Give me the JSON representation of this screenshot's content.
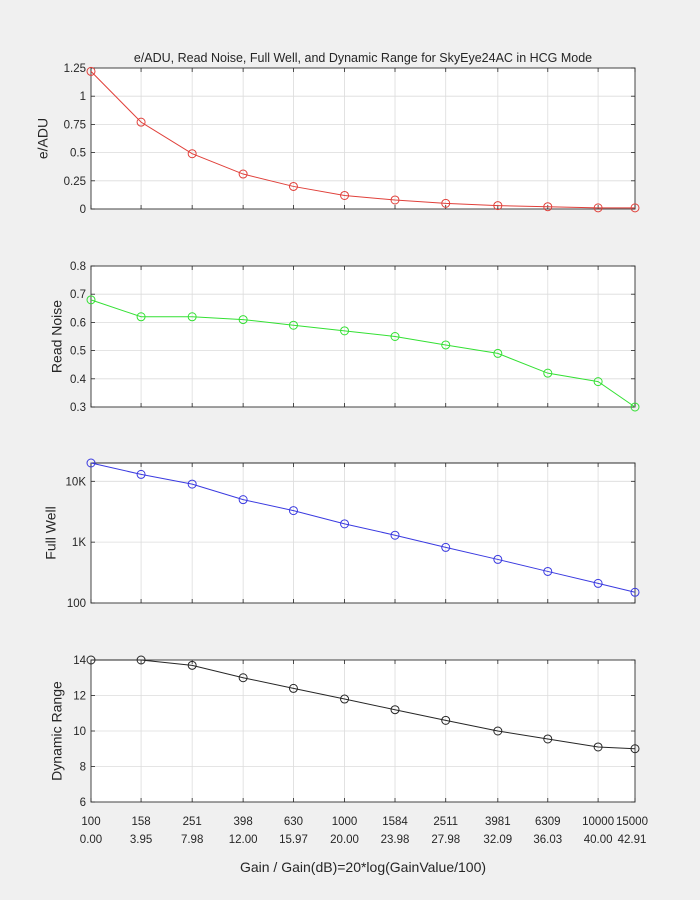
{
  "chart_data": {
    "type": "line",
    "title": "e/ADU, Read Noise, Full Well, and Dynamic Range for SkyEye24AC in HCG Mode",
    "xlabel": "Gain / Gain(dB)=20*log(GainValue/100)",
    "gain_labels": [
      "100",
      "158",
      "251",
      "398",
      "630",
      "1000",
      "1584",
      "2511",
      "3981",
      "6309",
      "10000",
      "15000"
    ],
    "db_labels": [
      "0.00",
      "3.95",
      "7.98",
      "12.00",
      "15.97",
      "20.00",
      "23.98",
      "27.98",
      "32.09",
      "36.03",
      "40.00",
      "42.91"
    ],
    "x_db": [
      0.0,
      3.95,
      7.98,
      12.0,
      15.97,
      20.0,
      23.98,
      27.98,
      32.09,
      36.03,
      40.0,
      42.91
    ],
    "xlim": [
      0,
      42.91
    ],
    "grid": true,
    "panels": [
      {
        "ylabel": "e/ADU",
        "color": "#e0403a",
        "scale": "linear",
        "ylim": [
          0,
          1.25
        ],
        "yticks": [
          0,
          0.25,
          0.5,
          0.75,
          1,
          1.25
        ],
        "ytick_labels": [
          "0",
          "0.25",
          "0.5",
          "0.75",
          "1",
          "1.25"
        ],
        "values": [
          1.22,
          0.77,
          0.49,
          0.31,
          0.2,
          0.12,
          0.08,
          0.05,
          0.03,
          0.02,
          0.01,
          0.01
        ]
      },
      {
        "ylabel": "Read Noise",
        "color": "#33e033",
        "scale": "linear",
        "ylim": [
          0.3,
          0.8
        ],
        "yticks": [
          0.3,
          0.4,
          0.5,
          0.6,
          0.7,
          0.8
        ],
        "ytick_labels": [
          "0.3",
          "0.4",
          "0.5",
          "0.6",
          "0.7",
          "0.8"
        ],
        "values": [
          0.68,
          0.62,
          0.62,
          0.61,
          0.59,
          0.57,
          0.55,
          0.52,
          0.49,
          0.42,
          0.39,
          0.3
        ]
      },
      {
        "ylabel": "Full Well",
        "color": "#3a3ae0",
        "scale": "log",
        "ylim": [
          100,
          20000
        ],
        "yticks": [
          100,
          1000,
          10000
        ],
        "ytick_labels": [
          "100",
          "1K",
          "10K"
        ],
        "values": [
          20000,
          13000,
          9000,
          5000,
          3300,
          2000,
          1300,
          820,
          520,
          330,
          210,
          150
        ]
      },
      {
        "ylabel": "Dynamic Range",
        "color": "#262626",
        "scale": "linear",
        "ylim": [
          6,
          14
        ],
        "yticks": [
          6,
          8,
          10,
          12,
          14
        ],
        "ytick_labels": [
          "6",
          "8",
          "10",
          "12",
          "14"
        ],
        "values": [
          14.0,
          14.0,
          13.7,
          13.0,
          12.4,
          11.8,
          11.2,
          10.6,
          10.0,
          9.55,
          9.1,
          9.0
        ]
      }
    ]
  }
}
